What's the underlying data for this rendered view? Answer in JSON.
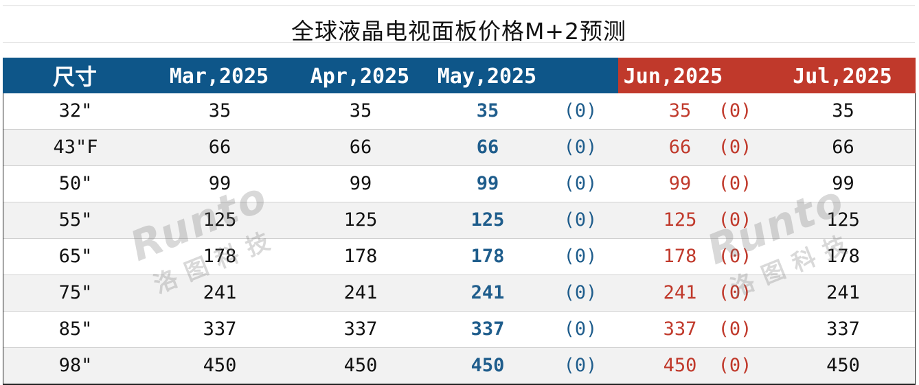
{
  "title": "全球液晶电视面板价格M+2预测",
  "headers": {
    "size": "尺寸",
    "mar": "Mar,2025",
    "apr": "Apr,2025",
    "may": "May,2025",
    "jun": "Jun,2025",
    "jul": "Jul,2025"
  },
  "colors": {
    "header_blue": "#0e5689",
    "header_red": "#c0392b",
    "may_text": "#1f5d8c",
    "jun_text": "#c0392b"
  },
  "rows": [
    {
      "size": "32\"",
      "mar": "35",
      "apr": "35",
      "may": "35",
      "may_chg": "(0)",
      "jun": "35",
      "jun_chg": "(0)",
      "jul": "35"
    },
    {
      "size": "43\"F",
      "mar": "66",
      "apr": "66",
      "may": "66",
      "may_chg": "(0)",
      "jun": "66",
      "jun_chg": "(0)",
      "jul": "66"
    },
    {
      "size": "50\"",
      "mar": "99",
      "apr": "99",
      "may": "99",
      "may_chg": "(0)",
      "jun": "99",
      "jun_chg": "(0)",
      "jul": "99"
    },
    {
      "size": "55\"",
      "mar": "125",
      "apr": "125",
      "may": "125",
      "may_chg": "(0)",
      "jun": "125",
      "jun_chg": "(0)",
      "jul": "125"
    },
    {
      "size": "65\"",
      "mar": "178",
      "apr": "178",
      "may": "178",
      "may_chg": "(0)",
      "jun": "178",
      "jun_chg": "(0)",
      "jul": "178"
    },
    {
      "size": "75\"",
      "mar": "241",
      "apr": "241",
      "may": "241",
      "may_chg": "(0)",
      "jun": "241",
      "jun_chg": "(0)",
      "jul": "241"
    },
    {
      "size": "85\"",
      "mar": "337",
      "apr": "337",
      "may": "337",
      "may_chg": "(0)",
      "jun": "337",
      "jun_chg": "(0)",
      "jul": "337"
    },
    {
      "size": "98\"",
      "mar": "450",
      "apr": "450",
      "may": "450",
      "may_chg": "(0)",
      "jun": "450",
      "jun_chg": "(0)",
      "jul": "450"
    }
  ],
  "watermark": {
    "logo": "Runto",
    "cn": "洛图科技"
  }
}
